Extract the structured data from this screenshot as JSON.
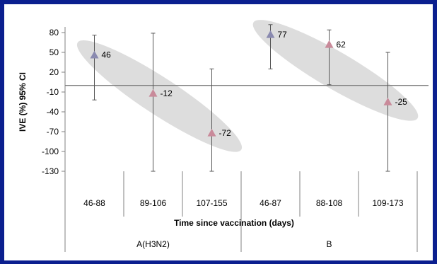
{
  "chart_data": {
    "type": "scatter",
    "ylabel": "IVE (%) 95% CI",
    "xlabel": "Time since vaccination (days)",
    "ylim": [
      -130,
      95
    ],
    "y_ticks": [
      80,
      50,
      20,
      -10,
      -40,
      -70,
      -100,
      -130
    ],
    "categories": [
      "46-88",
      "89-106",
      "107-155",
      "46-87",
      "88-108",
      "109-173"
    ],
    "groups": [
      {
        "name": "A(H3N2)",
        "span": [
          0,
          2
        ]
      },
      {
        "name": "B",
        "span": [
          3,
          5
        ]
      }
    ],
    "points": [
      {
        "category": "46-88",
        "value": 46,
        "lower": -22,
        "upper": 76,
        "label": "46",
        "color": "#8a8ab0"
      },
      {
        "category": "89-106",
        "value": -12,
        "lower": -130,
        "upper": 79,
        "label": "-12",
        "color": "#c98a9a"
      },
      {
        "category": "107-155",
        "value": -72,
        "lower": -130,
        "upper": 25,
        "label": "-72",
        "color": "#c98a9a"
      },
      {
        "category": "46-87",
        "value": 77,
        "lower": 25,
        "upper": 92,
        "label": "77",
        "color": "#8a8ab0"
      },
      {
        "category": "88-108",
        "value": 62,
        "lower": 1,
        "upper": 84,
        "label": "62",
        "color": "#c98a9a"
      },
      {
        "category": "109-173",
        "value": -25,
        "lower": -130,
        "upper": 50,
        "label": "-25",
        "color": "#c98a9a"
      }
    ],
    "highlight_ellipses": [
      {
        "group": "A(H3N2)",
        "from": "46-88",
        "to": "107-155"
      },
      {
        "group": "B",
        "from": "46-87",
        "to": "109-173"
      }
    ],
    "grid": false,
    "legend": "none"
  }
}
